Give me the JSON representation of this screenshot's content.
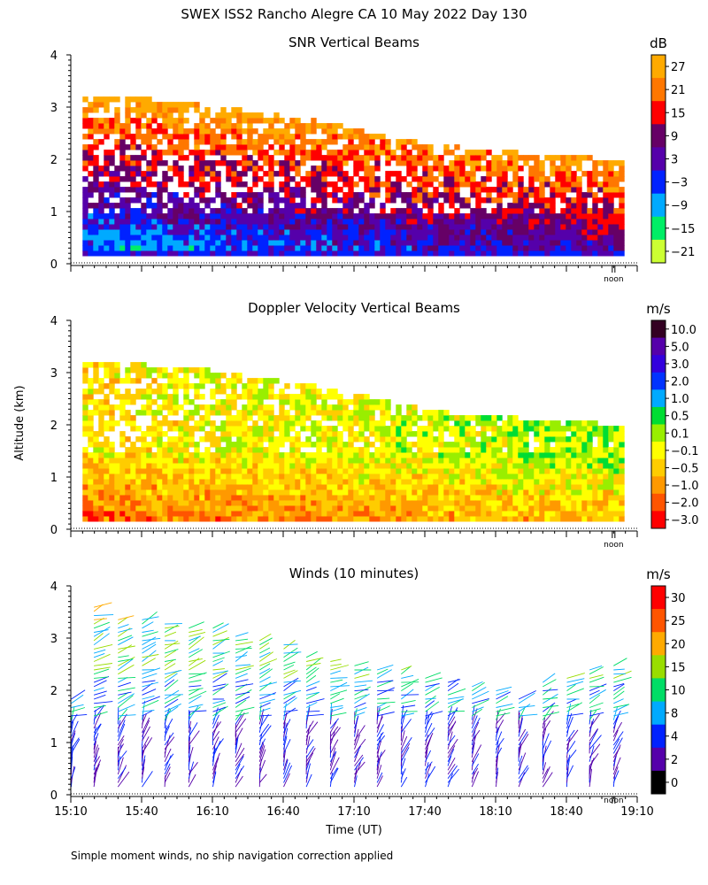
{
  "figure": {
    "title": "SWEX ISS2 Rancho Alegre CA  10 May 2022 Day 130",
    "ylabel": "Altitude (km)",
    "xlabel": "Time (UT)",
    "footnote": "Simple moment winds, no ship navigation correction applied",
    "noon_label": "noon"
  },
  "axes": {
    "y_ticks": [
      "0",
      "1",
      "2",
      "3",
      "4"
    ],
    "ylim": [
      0,
      4
    ],
    "x_ticks": [
      "15:10",
      "15:40",
      "16:10",
      "16:40",
      "17:10",
      "17:40",
      "18:10",
      "18:40",
      "19:10"
    ],
    "xlim_hours": [
      15.1667,
      19.1667
    ],
    "noon_time_hours": 19.0
  },
  "chart_data": [
    {
      "type": "heatmap",
      "title": "SNR Vertical Beams",
      "colorbar_unit": "dB",
      "colorbar_labels": [
        "27",
        "21",
        "15",
        "9",
        "3",
        "−3",
        "−9",
        "−15",
        "−21"
      ],
      "colors": [
        "#ffaa00",
        "#ff7700",
        "#ff0000",
        "#660066",
        "#5500aa",
        "#0022ff",
        "#00aaff",
        "#00ee66",
        "#ccff33"
      ],
      "top_altitude_km": [
        3.25,
        3.25,
        3.2,
        3.15,
        3.05,
        2.95,
        2.85,
        2.75,
        2.6,
        2.45,
        2.35,
        2.25,
        2.15,
        2.05
      ],
      "top_time_hours": [
        15.25,
        15.5,
        15.75,
        16.0,
        16.25,
        16.5,
        16.75,
        17.0,
        17.25,
        17.5,
        17.75,
        18.0,
        18.5,
        19.05
      ]
    },
    {
      "type": "heatmap",
      "title": "Doppler Velocity Vertical Beams",
      "colorbar_unit": "m/s",
      "colorbar_labels": [
        "10.0",
        "5.0",
        "3.0",
        "2.0",
        "1.0",
        "0.5",
        "0.1",
        "−0.1",
        "−0.5",
        "−1.0",
        "−2.0",
        "−3.0"
      ],
      "colors": [
        "#330022",
        "#5500aa",
        "#3300dd",
        "#0033ff",
        "#00aaff",
        "#00dd33",
        "#99ee00",
        "#ffff00",
        "#ffcc00",
        "#ff9900",
        "#ff5500",
        "#ff0000"
      ]
    },
    {
      "type": "scatter",
      "title": "Winds (10 minutes)",
      "colorbar_unit": "m/s",
      "colorbar_labels": [
        "30",
        "25",
        "20",
        "15",
        "10",
        "8",
        "4",
        "2",
        "0"
      ],
      "colors": [
        "#ff0000",
        "#ff5500",
        "#ffaa00",
        "#99dd00",
        "#00dd66",
        "#00aaff",
        "#0022ff",
        "#5500aa",
        "#000000"
      ],
      "profile_interval_minutes": 10,
      "profile_top_altitude_km": [
        1.9,
        3.6,
        3.4,
        3.4,
        3.35,
        3.25,
        3.2,
        3.1,
        3.0,
        2.9,
        2.7,
        2.6,
        2.55,
        2.45,
        2.4,
        2.3,
        2.2,
        2.1,
        2.0,
        1.9,
        2.2,
        2.3,
        2.4,
        2.5
      ],
      "profile_time_hours": [
        15.17,
        15.33,
        15.5,
        15.67,
        15.83,
        16.0,
        16.17,
        16.33,
        16.5,
        16.67,
        16.83,
        17.0,
        17.17,
        17.33,
        17.5,
        17.67,
        17.83,
        18.0,
        18.17,
        18.33,
        18.5,
        18.67,
        18.83,
        19.0
      ]
    }
  ]
}
